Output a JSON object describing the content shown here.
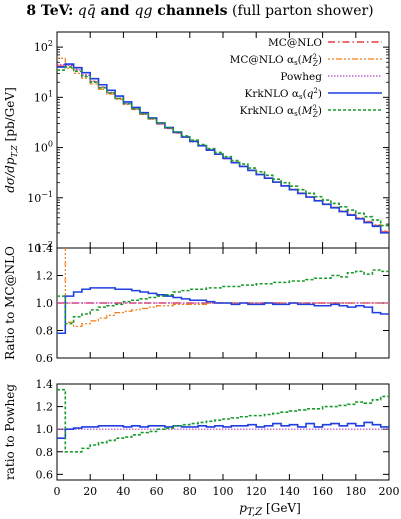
{
  "chart_data": {
    "type": "line",
    "title": "8 TeV: qq̄ and qg channels (full parton shower)",
    "xlabel": "p_{T,Z} [GeV]",
    "x_ticks": [
      "0",
      "20",
      "40",
      "60",
      "80",
      "100",
      "120",
      "140",
      "160",
      "180",
      "200"
    ],
    "xlim": [
      0,
      200
    ],
    "bin_width": 5,
    "legend_position": "top-right",
    "series_styles": [
      {
        "name": "MC@NLO",
        "color": "#e8141a",
        "dash": "7 3 1.5 3"
      },
      {
        "name": "MC@NLO αs(M_Z^2)",
        "color": "#f07f19",
        "dash": "2 2 2 2 6 2"
      },
      {
        "name": "Powheg",
        "color": "#b544c8",
        "dash": "1.5 1.5"
      },
      {
        "name": "KrkNLO αs(q^2)",
        "color": "#1f3fe0",
        "dash": ""
      },
      {
        "name": "KrkNLO αs(M_Z^2)",
        "color": "#1a9a2c",
        "dash": "3 2"
      }
    ],
    "panels": [
      {
        "id": "main",
        "ylabel": "dσ/dp_{T,Z} [pb/GeV]",
        "log_scale": true,
        "ylim": [
          0.01,
          200
        ],
        "y_ticks": [
          "10^2",
          "10^1",
          "10^0",
          "10^{-1}",
          "10^{-2}"
        ],
        "y_tick_values": [
          100,
          10,
          1,
          0.1,
          0.01
        ],
        "series": [
          {
            "name": "MC@NLO",
            "values": [
              42,
              44,
              36,
              28,
              21,
              16,
              12.5,
              9.6,
              7.4,
              5.8,
              4.6,
              3.7,
              2.95,
              2.4,
              1.95,
              1.6,
              1.3,
              1.07,
              0.88,
              0.73,
              0.6,
              0.5,
              0.42,
              0.35,
              0.29,
              0.245,
              0.205,
              0.173,
              0.146,
              0.123,
              0.104,
              0.088,
              0.075,
              0.064,
              0.054,
              0.046,
              0.039,
              0.033,
              0.028,
              0.021
            ]
          },
          {
            "name": "MC@NLO αs(M_Z^2)",
            "values": [
              60,
              38,
              30,
              24,
              18.5,
              14.5,
              11.6,
              9.1,
              7.2,
              5.7,
              4.6,
              3.7,
              2.96,
              2.42,
              1.97,
              1.62,
              1.32,
              1.08,
              0.89,
              0.74,
              0.61,
              0.51,
              0.425,
              0.355,
              0.295,
              0.248,
              0.208,
              0.175,
              0.148,
              0.125,
              0.105,
              0.089,
              0.076,
              0.065,
              0.055,
              0.047,
              0.04,
              0.034,
              0.029,
              0.022
            ]
          },
          {
            "name": "Powheg",
            "values": [
              45,
              43,
              35,
              27.5,
              20.8,
              16,
              12.4,
              9.6,
              7.45,
              5.85,
              4.62,
              3.7,
              2.96,
              2.41,
              1.96,
              1.6,
              1.3,
              1.07,
              0.88,
              0.73,
              0.6,
              0.5,
              0.42,
              0.35,
              0.29,
              0.245,
              0.205,
              0.173,
              0.146,
              0.123,
              0.104,
              0.088,
              0.075,
              0.064,
              0.054,
              0.046,
              0.039,
              0.033,
              0.028,
              0.021
            ]
          },
          {
            "name": "KrkNLO αs(q^2)",
            "values": [
              40,
              46,
              39,
              31,
              23.5,
              17.8,
              13.8,
              10.6,
              8.1,
              6.3,
              4.95,
              3.9,
              3.1,
              2.5,
              2.02,
              1.63,
              1.33,
              1.09,
              0.89,
              0.74,
              0.61,
              0.5,
              0.42,
              0.35,
              0.29,
              0.245,
              0.205,
              0.172,
              0.145,
              0.122,
              0.103,
              0.087,
              0.074,
              0.063,
              0.053,
              0.045,
              0.038,
              0.032,
              0.027,
              0.02
            ]
          },
          {
            "name": "KrkNLO αs(M_Z^2)",
            "values": [
              35,
              40,
              33,
              26,
              20,
              15.5,
              12.2,
              9.5,
              7.5,
              5.9,
              4.7,
              3.8,
              3.05,
              2.5,
              2.05,
              1.7,
              1.4,
              1.15,
              0.95,
              0.8,
              0.66,
              0.55,
              0.47,
              0.39,
              0.33,
              0.28,
              0.235,
              0.2,
              0.17,
              0.145,
              0.123,
              0.105,
              0.09,
              0.077,
              0.066,
              0.057,
              0.049,
              0.042,
              0.036,
              0.028
            ]
          }
        ]
      },
      {
        "id": "ratio-mcnlo",
        "ylabel": "Ratio to MC@NLO",
        "log_scale": false,
        "ylim": [
          0.6,
          1.4
        ],
        "y_ticks": [
          "1.4",
          "1.2",
          "1.0",
          "0.8",
          "0.6"
        ],
        "y_tick_values": [
          1.4,
          1.2,
          1.0,
          0.8,
          0.6
        ],
        "reference_line": 1.0,
        "series": [
          {
            "name": "MC@NLO",
            "values": [
              1,
              1,
              1,
              1,
              1,
              1,
              1,
              1,
              1,
              1,
              1,
              1,
              1,
              1,
              1,
              1,
              1,
              1,
              1,
              1,
              1,
              1,
              1,
              1,
              1,
              1,
              1,
              1,
              1,
              1,
              1,
              1,
              1,
              1,
              1,
              1,
              1,
              1,
              1,
              1
            ]
          },
          {
            "name": "MC@NLO αs(M_Z^2)",
            "values": [
              1.42,
              0.86,
              0.83,
              0.85,
              0.87,
              0.89,
              0.91,
              0.93,
              0.94,
              0.95,
              0.96,
              0.97,
              0.98,
              0.98,
              0.99,
              0.99,
              0.99,
              0.99,
              1.0,
              1.0,
              1.0,
              1.0,
              1.0,
              1.0,
              1.0,
              1.0,
              1.0,
              1.0,
              1.0,
              1.0,
              1.0,
              1.0,
              1.0,
              1.0,
              1.0,
              1.0,
              1.0,
              1.0,
              1.0,
              1.0
            ]
          },
          {
            "name": "Powheg",
            "values": [
              1.0,
              1.0,
              1.0,
              1.0,
              1.0,
              1.0,
              1.0,
              1.0,
              1.0,
              1.0,
              1.0,
              1.0,
              1.0,
              1.0,
              1.0,
              1.0,
              1.0,
              1.0,
              1.0,
              1.0,
              1.0,
              1.0,
              1.0,
              1.0,
              1.0,
              1.0,
              1.0,
              1.0,
              1.0,
              1.0,
              1.0,
              1.0,
              1.0,
              1.0,
              1.0,
              1.0,
              1.0,
              1.0,
              1.0,
              1.0
            ]
          },
          {
            "name": "KrkNLO αs(q^2)",
            "values": [
              0.78,
              1.05,
              1.08,
              1.1,
              1.11,
              1.11,
              1.11,
              1.1,
              1.1,
              1.09,
              1.08,
              1.07,
              1.06,
              1.05,
              1.04,
              1.03,
              1.02,
              1.02,
              1.01,
              1.0,
              1.0,
              0.99,
              1.0,
              0.99,
              0.99,
              1.0,
              0.99,
              0.99,
              1.0,
              0.99,
              0.99,
              0.98,
              0.98,
              0.99,
              0.98,
              0.97,
              0.98,
              0.97,
              0.93,
              0.92
            ]
          },
          {
            "name": "KrkNLO αs(M_Z^2)",
            "values": [
              1.05,
              0.85,
              0.9,
              0.92,
              0.95,
              0.97,
              0.98,
              0.99,
              1.01,
              1.02,
              1.03,
              1.04,
              1.05,
              1.06,
              1.08,
              1.09,
              1.1,
              1.1,
              1.11,
              1.11,
              1.12,
              1.12,
              1.13,
              1.13,
              1.14,
              1.14,
              1.15,
              1.15,
              1.16,
              1.16,
              1.17,
              1.18,
              1.18,
              1.2,
              1.19,
              1.22,
              1.23,
              1.21,
              1.24,
              1.23
            ]
          }
        ]
      },
      {
        "id": "ratio-powheg",
        "ylabel": "ratio to Powheg",
        "log_scale": false,
        "ylim": [
          0.55,
          1.4
        ],
        "y_ticks": [
          "1.4",
          "1.2",
          "1.0",
          "0.8",
          "0.6"
        ],
        "y_tick_values": [
          1.4,
          1.2,
          1.0,
          0.8,
          0.6
        ],
        "reference_line": 1.0,
        "series": [
          {
            "name": "Powheg",
            "values": [
              1,
              1,
              1,
              1,
              1,
              1,
              1,
              1,
              1,
              1,
              1,
              1,
              1,
              1,
              1,
              1,
              1,
              1,
              1,
              1,
              1,
              1,
              1,
              1,
              1,
              1,
              1,
              1,
              1,
              1,
              1,
              1,
              1,
              1,
              1,
              1,
              1,
              1,
              1,
              1
            ]
          },
          {
            "name": "KrkNLO αs(q^2)",
            "values": [
              0.92,
              1.0,
              1.01,
              1.02,
              1.02,
              1.03,
              1.03,
              1.03,
              1.02,
              1.03,
              1.02,
              1.03,
              1.03,
              1.02,
              1.03,
              1.02,
              1.02,
              1.03,
              1.02,
              1.03,
              1.02,
              1.03,
              1.03,
              1.04,
              1.02,
              1.03,
              1.05,
              1.03,
              1.04,
              1.02,
              1.05,
              1.02,
              1.04,
              1.05,
              1.03,
              1.05,
              1.03,
              1.06,
              1.04,
              1.02
            ]
          },
          {
            "name": "KrkNLO αs(M_Z^2)",
            "values": [
              1.35,
              0.8,
              0.8,
              0.83,
              0.86,
              0.88,
              0.9,
              0.92,
              0.93,
              0.95,
              0.97,
              0.98,
              1.0,
              1.01,
              1.03,
              1.04,
              1.05,
              1.06,
              1.07,
              1.08,
              1.09,
              1.1,
              1.11,
              1.12,
              1.12,
              1.13,
              1.14,
              1.15,
              1.16,
              1.17,
              1.18,
              1.18,
              1.2,
              1.2,
              1.21,
              1.22,
              1.24,
              1.23,
              1.26,
              1.29
            ]
          }
        ]
      }
    ]
  }
}
